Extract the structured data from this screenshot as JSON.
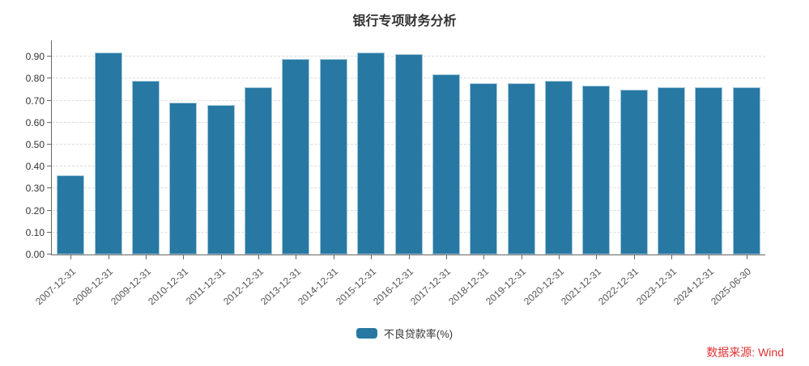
{
  "title": "银行专项财务分析",
  "legend": {
    "label": "不良贷款率(%)"
  },
  "source_note": "数据来源: Wind",
  "colors": {
    "bar": "#2779a3",
    "bar_border": "#a5c8da",
    "grid": "#dddddd",
    "axis": "#666666",
    "y_label": "#333333",
    "x_label": "#555555",
    "title_text": "#333333",
    "source": "#e03232"
  },
  "chart_data": {
    "type": "bar",
    "title": "银行专项财务分析",
    "series_name": "不良贷款率(%)",
    "categories": [
      "2007-12-31",
      "2008-12-31",
      "2009-12-31",
      "2010-12-31",
      "2011-12-31",
      "2012-12-31",
      "2013-12-31",
      "2014-12-31",
      "2015-12-31",
      "2016-12-31",
      "2017-12-31",
      "2018-12-31",
      "2019-12-31",
      "2020-12-31",
      "2021-12-31",
      "2022-12-31",
      "2023-12-31",
      "2024-12-31",
      "2025-06-30"
    ],
    "values": [
      0.36,
      0.92,
      0.79,
      0.69,
      0.68,
      0.76,
      0.89,
      0.89,
      0.92,
      0.91,
      0.82,
      0.78,
      0.78,
      0.79,
      0.77,
      0.75,
      0.76,
      0.76,
      0.76
    ],
    "ytick_labels": [
      "0.00",
      "0.10",
      "0.20",
      "0.30",
      "0.40",
      "0.50",
      "0.60",
      "0.70",
      "0.80",
      "0.90"
    ],
    "yticks": [
      0.0,
      0.1,
      0.2,
      0.3,
      0.4,
      0.5,
      0.6,
      0.7,
      0.8,
      0.9
    ],
    "ylim": [
      0,
      0.974
    ],
    "grid": true,
    "legend_position": "bottom",
    "xlabel": "",
    "ylabel": ""
  }
}
